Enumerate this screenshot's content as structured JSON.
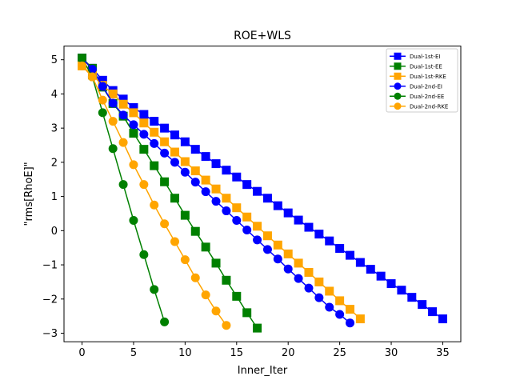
{
  "chart_data": {
    "type": "line",
    "title": "ROE+WLS",
    "xlabel": "Inner_Iter",
    "ylabel": "\"rms[RhoE]\"",
    "xlim": [
      -1.75,
      36.75
    ],
    "ylim": [
      -3.25,
      5.4
    ],
    "xticks": [
      0,
      5,
      10,
      15,
      20,
      25,
      30,
      35
    ],
    "yticks": [
      -3,
      -2,
      -1,
      0,
      1,
      2,
      3,
      4,
      5
    ],
    "grid": false,
    "legend_position": "top-right",
    "series": [
      {
        "name": "Dual-1st-EI",
        "color": "#0000ff",
        "marker": "square",
        "x": [
          0,
          1,
          2,
          3,
          4,
          5,
          6,
          7,
          8,
          9,
          10,
          11,
          12,
          13,
          14,
          15,
          16,
          17,
          18,
          19,
          20,
          21,
          22,
          23,
          24,
          25,
          26,
          27,
          28,
          29,
          30,
          31,
          32,
          33,
          34,
          35
        ],
        "y": [
          5.05,
          4.75,
          4.4,
          4.1,
          3.85,
          3.6,
          3.4,
          3.2,
          3.0,
          2.8,
          2.6,
          2.38,
          2.17,
          1.96,
          1.77,
          1.57,
          1.35,
          1.15,
          0.95,
          0.73,
          0.52,
          0.31,
          0.1,
          -0.1,
          -0.3,
          -0.52,
          -0.72,
          -0.93,
          -1.13,
          -1.33,
          -1.55,
          -1.74,
          -1.95,
          -2.16,
          -2.37,
          -2.58
        ]
      },
      {
        "name": "Dual-1st-EE",
        "color": "#008000",
        "marker": "square",
        "x": [
          0,
          1,
          2,
          3,
          4,
          5,
          6,
          7,
          8,
          9,
          10,
          11,
          12,
          13,
          14,
          15,
          16,
          17
        ],
        "y": [
          5.05,
          4.75,
          4.2,
          3.72,
          3.35,
          2.85,
          2.38,
          1.9,
          1.43,
          0.95,
          0.45,
          -0.02,
          -0.48,
          -0.95,
          -1.45,
          -1.92,
          -2.4,
          -2.85
        ]
      },
      {
        "name": "Dual-1st-RKE",
        "color": "#ffa500",
        "marker": "square",
        "x": [
          0,
          1,
          2,
          3,
          4,
          5,
          6,
          7,
          8,
          9,
          10,
          11,
          12,
          13,
          14,
          15,
          16,
          17,
          18,
          19,
          20,
          21,
          22,
          23,
          24,
          25,
          26,
          27
        ],
        "y": [
          4.82,
          4.55,
          4.25,
          4.0,
          3.7,
          3.45,
          3.15,
          2.88,
          2.6,
          2.3,
          2.02,
          1.75,
          1.48,
          1.22,
          0.95,
          0.67,
          0.4,
          0.13,
          -0.15,
          -0.42,
          -0.68,
          -0.95,
          -1.22,
          -1.5,
          -1.77,
          -2.05,
          -2.3,
          -2.58
        ]
      },
      {
        "name": "Dual-2nd-EI",
        "color": "#0000ff",
        "marker": "circle",
        "x": [
          0,
          1,
          2,
          3,
          4,
          5,
          6,
          7,
          8,
          9,
          10,
          11,
          12,
          13,
          14,
          15,
          16,
          17,
          18,
          19,
          20,
          21,
          22,
          23,
          24,
          25,
          26
        ],
        "y": [
          5.05,
          4.72,
          4.22,
          3.73,
          3.38,
          3.1,
          2.82,
          2.55,
          2.27,
          2.0,
          1.71,
          1.42,
          1.14,
          0.86,
          0.58,
          0.3,
          0.02,
          -0.27,
          -0.55,
          -0.83,
          -1.12,
          -1.4,
          -1.68,
          -1.96,
          -2.24,
          -2.45,
          -2.7
        ]
      },
      {
        "name": "Dual-2nd-EE",
        "color": "#008000",
        "marker": "circle",
        "x": [
          0,
          1,
          2,
          3,
          4,
          5,
          6,
          7,
          8
        ],
        "y": [
          5.05,
          4.5,
          3.45,
          2.4,
          1.35,
          0.3,
          -0.7,
          -1.72,
          -2.67
        ]
      },
      {
        "name": "Dual-2nd-RKE",
        "color": "#ffa500",
        "marker": "circle",
        "x": [
          0,
          1,
          2,
          3,
          4,
          5,
          6,
          7,
          8,
          9,
          10,
          11,
          12,
          13,
          14
        ],
        "y": [
          4.82,
          4.5,
          3.82,
          3.2,
          2.58,
          1.93,
          1.35,
          0.75,
          0.2,
          -0.32,
          -0.85,
          -1.38,
          -1.88,
          -2.35,
          -2.77
        ]
      }
    ]
  }
}
